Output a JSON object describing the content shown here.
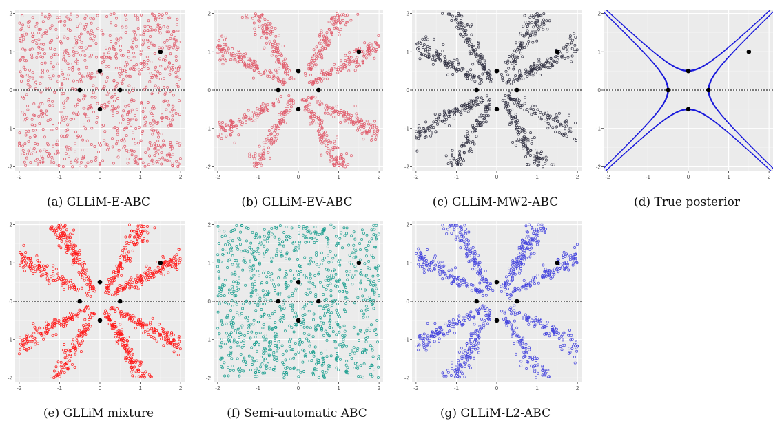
{
  "figure": {
    "captions": [
      "(a) GLLiM-E-ABC",
      "(b) GLLiM-EV-ABC",
      "(c) GLLiM-MW2-ABC",
      "(d) True posterior",
      "(e)  GLLiM mixture",
      "(f) Semi-automatic ABC",
      "(g)  GLLiM-L2-ABC"
    ]
  },
  "chart_data": [
    {
      "type": "scatter",
      "caption": "(a) GLLiM-E-ABC",
      "xlim": [
        -2.1,
        2.1
      ],
      "ylim": [
        -2.1,
        2.1
      ],
      "xticks": [
        "-2",
        "-1",
        "0",
        "1",
        "2"
      ],
      "yticks": [
        "-2",
        "-1",
        "0",
        "1",
        "2"
      ],
      "grid": true,
      "background": "#ebebeb",
      "reference_line": {
        "y": 0,
        "style": "dotted",
        "color": "#333333"
      },
      "sample_color": "#e05a6a",
      "sample_pattern": "diffuse",
      "n_samples": 900,
      "reference_points": [
        [
          0,
          0.5
        ],
        [
          -0.5,
          0
        ],
        [
          0.5,
          0
        ],
        [
          0,
          -0.5
        ],
        [
          1.5,
          1
        ]
      ]
    },
    {
      "type": "scatter",
      "caption": "(b) GLLiM-EV-ABC",
      "xlim": [
        -2.1,
        2.1
      ],
      "ylim": [
        -2.1,
        2.1
      ],
      "xticks": [
        "-2",
        "-1",
        "0",
        "1",
        "2"
      ],
      "yticks": [
        "-2",
        "-1",
        "0",
        "1",
        "2"
      ],
      "grid": true,
      "background": "#ebebeb",
      "reference_line": {
        "y": 0,
        "style": "dotted",
        "color": "#333333"
      },
      "sample_color": "#e05a6a",
      "sample_pattern": "hyperbola-arms",
      "n_samples": 900,
      "reference_points": [
        [
          0,
          0.5
        ],
        [
          -0.5,
          0
        ],
        [
          0.5,
          0
        ],
        [
          0,
          -0.5
        ],
        [
          1.5,
          1
        ]
      ]
    },
    {
      "type": "scatter",
      "caption": "(c) GLLiM-MW2-ABC",
      "xlim": [
        -2.1,
        2.1
      ],
      "ylim": [
        -2.1,
        2.1
      ],
      "xticks": [
        "-2",
        "-1",
        "0",
        "1",
        "2"
      ],
      "yticks": [
        "-2",
        "-1",
        "0",
        "1",
        "2"
      ],
      "grid": true,
      "background": "#ebebeb",
      "reference_line": {
        "y": 0,
        "style": "dotted",
        "color": "#333333"
      },
      "sample_color": "#333344",
      "sample_pattern": "hyperbola-arms",
      "n_samples": 900,
      "reference_points": [
        [
          0,
          0.5
        ],
        [
          -0.5,
          0
        ],
        [
          0.5,
          0
        ],
        [
          0,
          -0.5
        ],
        [
          1.5,
          1
        ]
      ]
    },
    {
      "type": "line",
      "caption": "(d) True posterior",
      "xlim": [
        -2.1,
        2.1
      ],
      "ylim": [
        -2.1,
        2.1
      ],
      "xticks": [
        "-2",
        "-1",
        "0",
        "1",
        "2"
      ],
      "yticks": [
        "-2",
        "-1",
        "0",
        "1",
        "2"
      ],
      "grid": true,
      "background": "#ebebeb",
      "reference_line": {
        "y": 0,
        "style": "dotted",
        "color": "#333333"
      },
      "line_color": "#1a1adb",
      "contours": [
        0.24,
        0.25,
        0.265
      ],
      "reference_points": [
        [
          0,
          0.5
        ],
        [
          -0.5,
          0
        ],
        [
          0.5,
          0
        ],
        [
          0,
          -0.5
        ],
        [
          1.5,
          1
        ]
      ]
    },
    {
      "type": "scatter",
      "caption": "(e)  GLLiM mixture",
      "xlim": [
        -2.1,
        2.1
      ],
      "ylim": [
        -2.1,
        2.1
      ],
      "xticks": [
        "-2",
        "-1",
        "0",
        "1",
        "2"
      ],
      "yticks": [
        "-2",
        "-1",
        "0",
        "1",
        "2"
      ],
      "grid": true,
      "background": "#ebebeb",
      "reference_line": {
        "y": 0,
        "style": "dotted",
        "color": "#333333"
      },
      "sample_color": "#ff1a1a",
      "sample_pattern": "hyperbola-arms",
      "n_samples": 1000,
      "reference_points": [
        [
          0,
          0.5
        ],
        [
          -0.5,
          0
        ],
        [
          0.5,
          0
        ],
        [
          0,
          -0.5
        ],
        [
          1.5,
          1
        ]
      ]
    },
    {
      "type": "scatter",
      "caption": "(f) Semi-automatic ABC",
      "xlim": [
        -2.1,
        2.1
      ],
      "ylim": [
        -2.1,
        2.1
      ],
      "xticks": [
        "-2",
        "-1",
        "0",
        "1",
        "2"
      ],
      "yticks": [
        "-2",
        "-1",
        "0",
        "1",
        "2"
      ],
      "grid": true,
      "background": "#ebebeb",
      "reference_line": {
        "y": 0,
        "style": "dotted",
        "color": "#333333"
      },
      "sample_color": "#1a9e8f",
      "sample_pattern": "uniform",
      "n_samples": 1000,
      "reference_points": [
        [
          0,
          0.5
        ],
        [
          -0.5,
          0
        ],
        [
          0.5,
          0
        ],
        [
          0,
          -0.5
        ],
        [
          1.5,
          1
        ]
      ]
    },
    {
      "type": "scatter",
      "caption": "(g)  GLLiM-L2-ABC",
      "xlim": [
        -2.1,
        2.1
      ],
      "ylim": [
        -2.1,
        2.1
      ],
      "xticks": [
        "-2",
        "-1",
        "0",
        "1",
        "2"
      ],
      "yticks": [
        "-2",
        "-1",
        "0",
        "1",
        "2"
      ],
      "grid": true,
      "background": "#ebebeb",
      "reference_line": {
        "y": 0,
        "style": "dotted",
        "color": "#333333"
      },
      "sample_color": "#4444dd",
      "sample_pattern": "hyperbola-arms",
      "n_samples": 900,
      "reference_points": [
        [
          0,
          0.5
        ],
        [
          -0.5,
          0
        ],
        [
          0.5,
          0
        ],
        [
          0,
          -0.5
        ],
        [
          1.5,
          1
        ]
      ]
    }
  ]
}
